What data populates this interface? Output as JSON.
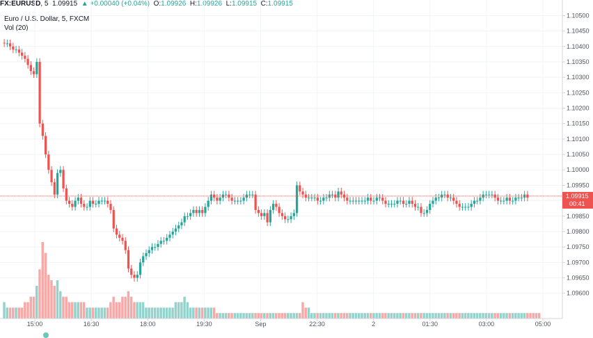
{
  "header": {
    "symbol": "FX:EURUSD",
    "interval": "5",
    "last": "1.09915",
    "change": "▲ +0.00040 (+0.04%)",
    "ohlc": [
      {
        "label": "O:",
        "value": "1.09926"
      },
      {
        "label": "H:",
        "value": "1.09926"
      },
      {
        "label": "L:",
        "value": "1.09915"
      },
      {
        "label": "C:",
        "value": "1.09915"
      }
    ],
    "title": "Euro / U.S. Dollar, 5, FXCM",
    "volume_label": "Vol (20)"
  },
  "price_axis": {
    "ticks": [
      "1.10500",
      "1.10450",
      "1.10400",
      "1.10350",
      "1.10300",
      "1.10250",
      "1.10200",
      "1.10150",
      "1.10100",
      "1.10050",
      "1.10000",
      "1.09950",
      "1.09900",
      "1.09850",
      "1.09800",
      "1.09750",
      "1.09700",
      "1.09650",
      "1.09600"
    ],
    "current_price": "1.09915",
    "countdown": "00:41"
  },
  "time_axis": {
    "labels": [
      "15:00",
      "16:30",
      "18:00",
      "19:30",
      "Sep",
      "22:30",
      "2",
      "01:30",
      "03:00",
      "05:00"
    ]
  },
  "colors": {
    "up": "#26a69a",
    "down": "#ef5350",
    "up_volume": "#94d2cc",
    "down_volume": "#f7a9a7",
    "grid": "#f0f3fa",
    "price_line": "#ef5350",
    "text": "#131722"
  },
  "chart_data": {
    "type": "candlestick",
    "interval_minutes": 5,
    "y_range": [
      1.0957,
      1.1051
    ],
    "x_tick_labels": [
      "15:00",
      "16:30",
      "18:00",
      "19:30",
      "Sep",
      "22:30",
      "2",
      "01:30",
      "03:00",
      "05:00"
    ],
    "closes": [
      1.1041,
      1.1041,
      1.104,
      1.1039,
      1.1039,
      1.1038,
      1.1037,
      1.1036,
      1.1034,
      1.1032,
      1.1031,
      1.1035,
      1.1015,
      1.1011,
      1.1005,
      1.1,
      1.0996,
      1.0992,
      1.0999,
      1.1,
      1.0994,
      1.099,
      1.0989,
      1.0988,
      1.099,
      1.0991,
      1.0989,
      1.0988,
      1.0988,
      1.099,
      1.0989,
      1.0989,
      1.099,
      1.099,
      1.099,
      1.0989,
      1.0987,
      1.0981,
      1.0979,
      1.0978,
      1.0977,
      1.0974,
      1.0968,
      1.0966,
      1.0965,
      1.0966,
      1.097,
      1.0972,
      1.0973,
      1.0974,
      1.0975,
      1.0975,
      1.0976,
      1.0977,
      1.0977,
      1.0978,
      1.0979,
      1.098,
      1.0981,
      1.0982,
      1.0983,
      1.0985,
      1.0985,
      1.0986,
      1.0987,
      1.0986,
      1.0987,
      1.0986,
      1.0988,
      1.099,
      1.0992,
      1.0991,
      1.099,
      1.0991,
      1.0992,
      1.0992,
      1.0991,
      1.099,
      1.099,
      1.099,
      1.099,
      1.0991,
      1.0992,
      1.0992,
      1.0992,
      1.0987,
      1.0986,
      1.0985,
      1.0986,
      1.0983,
      1.0987,
      1.0989,
      1.0988,
      1.0986,
      1.0985,
      1.0984,
      1.0984,
      1.0985,
      1.0986,
      1.0995,
      1.0993,
      1.0992,
      1.0991,
      1.0991,
      1.0991,
      1.0991,
      1.099,
      1.099,
      1.0991,
      1.0991,
      1.0992,
      1.0992,
      1.0991,
      1.0993,
      1.0992,
      1.0991,
      1.099,
      1.099,
      1.099,
      1.099,
      1.099,
      1.099,
      1.099,
      1.0991,
      1.099,
      1.099,
      1.0991,
      1.0991,
      1.099,
      1.0989,
      1.0989,
      1.0989,
      1.0989,
      1.099,
      1.099,
      1.0989,
      1.0989,
      1.099,
      1.0989,
      1.0988,
      1.0988,
      1.0986,
      1.0986,
      1.0987,
      1.0989,
      1.099,
      1.0991,
      1.0991,
      1.0992,
      1.0992,
      1.0991,
      1.0991,
      1.099,
      1.0989,
      1.0988,
      1.0988,
      1.0988,
      1.0988,
      1.0989,
      1.099,
      1.099,
      1.0991,
      1.0992,
      1.0992,
      1.0992,
      1.0992,
      1.0991,
      1.099,
      1.099,
      1.099,
      1.0991,
      1.099,
      1.099,
      1.0991,
      1.0991,
      1.0991,
      1.0992,
      1.0991
    ],
    "volumes": [
      3,
      2,
      2,
      2,
      2,
      2,
      2,
      3,
      3,
      4,
      4,
      6,
      9,
      14,
      12,
      8,
      7,
      6,
      7,
      5,
      4,
      4,
      3,
      3,
      3,
      3,
      3,
      3,
      2,
      2,
      2,
      2,
      2,
      2,
      2,
      2,
      3,
      4,
      3,
      3,
      4,
      4,
      5,
      4,
      3,
      3,
      3,
      3,
      2,
      2,
      2,
      2,
      2,
      2,
      2,
      2,
      2,
      2,
      3,
      3,
      3,
      4,
      3,
      2,
      2,
      2,
      2,
      2,
      2,
      2,
      2,
      2,
      1,
      1,
      1,
      1,
      1,
      1,
      1,
      1,
      1,
      1,
      1,
      1,
      1,
      1,
      1,
      1,
      1,
      1,
      1,
      1,
      1,
      1,
      1,
      1,
      1,
      1,
      1,
      1,
      1,
      3,
      2,
      2,
      1,
      1,
      1,
      1,
      1,
      1,
      1,
      1,
      1,
      1,
      1,
      1,
      1,
      1,
      1,
      1,
      1,
      1,
      1,
      1,
      1,
      1,
      1,
      1,
      1,
      1,
      1,
      1,
      1,
      1,
      1,
      1,
      1,
      1,
      1,
      1,
      1,
      1,
      1,
      1,
      1,
      1,
      1,
      1,
      1,
      1,
      1,
      1,
      1,
      1,
      1,
      1,
      1,
      1,
      1,
      1,
      1,
      1,
      1,
      1,
      1,
      1,
      1,
      1,
      1,
      1,
      1,
      1,
      1,
      1,
      1,
      1,
      1,
      1,
      1,
      1,
      1,
      1
    ]
  }
}
